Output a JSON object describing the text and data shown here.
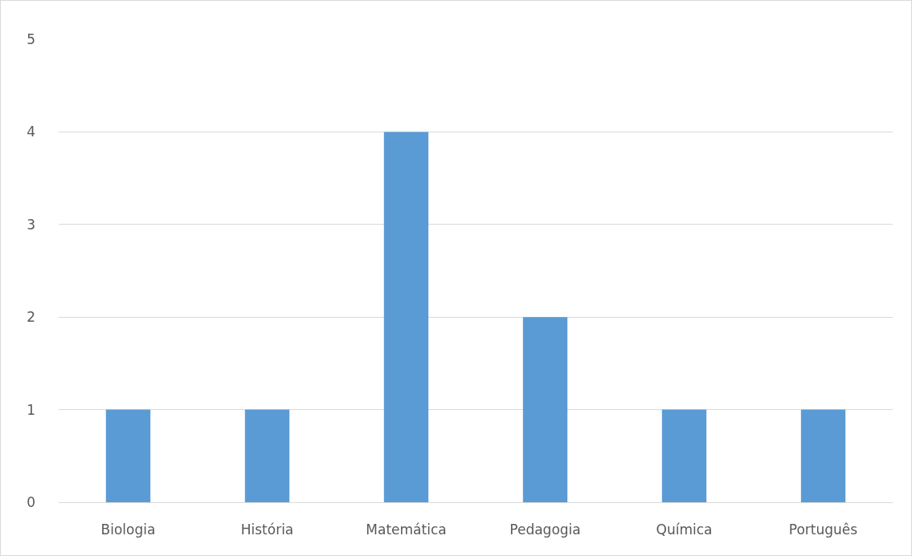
{
  "chart_data": {
    "type": "bar",
    "categories": [
      "Biologia",
      "História",
      "Matemática",
      "Pedagogia",
      "Química",
      "Português"
    ],
    "values": [
      1,
      1,
      4,
      2,
      1,
      1
    ],
    "color": "#5b9bd5",
    "ylim": [
      0,
      5
    ],
    "yticks": [
      0,
      1,
      2,
      3,
      4,
      5
    ],
    "grid": "y"
  }
}
